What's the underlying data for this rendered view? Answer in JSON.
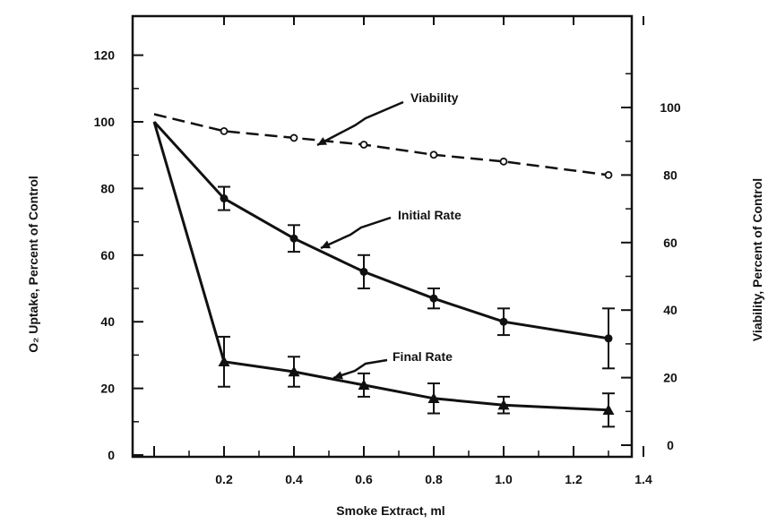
{
  "chart_data": {
    "type": "line",
    "title": "",
    "xlabel": "Smoke Extract, ml",
    "ylabel": "O₂ Uptake, Percent of Control",
    "y2label": "Viability, Percent of Control",
    "xlim": [
      0,
      1.4
    ],
    "ylim": [
      0,
      130
    ],
    "y2lim": [
      0,
      130
    ],
    "xticks": [
      0.2,
      0.4,
      0.6,
      0.8,
      1.0,
      1.2,
      1.4
    ],
    "xtick_labels": [
      "0.2",
      "0.4",
      "0.6",
      "0.8",
      "1.0",
      "1.2",
      "1.4"
    ],
    "yticks": [
      0,
      20,
      40,
      60,
      80,
      100,
      120
    ],
    "ytick_labels": [
      "0",
      "20",
      "40",
      "60",
      "80",
      "100",
      "120"
    ],
    "y2ticks": [
      0,
      20,
      40,
      60,
      80,
      100
    ],
    "y2tick_labels": [
      "0",
      "20",
      "40",
      "60",
      "80",
      "100"
    ],
    "grid": false,
    "series": [
      {
        "name": "Viability",
        "axis": "right",
        "style": "dashed",
        "marker": "open-circle",
        "x": [
          0,
          0.2,
          0.4,
          0.6,
          0.8,
          1.0,
          1.3
        ],
        "y": [
          98,
          93,
          91,
          89,
          86,
          84,
          80
        ]
      },
      {
        "name": "Initial Rate",
        "axis": "left",
        "style": "solid",
        "marker": "filled-circle",
        "x": [
          0,
          0.2,
          0.4,
          0.6,
          0.8,
          1.0,
          1.3
        ],
        "y": [
          100,
          77,
          65,
          55,
          47,
          40,
          35
        ],
        "error": [
          0,
          3.5,
          4,
          5,
          3,
          4,
          9
        ]
      },
      {
        "name": "Final Rate",
        "axis": "left",
        "style": "solid",
        "marker": "filled-triangle",
        "x": [
          0,
          0.2,
          0.4,
          0.6,
          0.8,
          1.0,
          1.3
        ],
        "y": [
          100,
          28,
          25,
          21,
          17,
          15,
          13.5
        ],
        "error": [
          0,
          7.5,
          4.5,
          3.5,
          4.5,
          2.5,
          5
        ]
      }
    ]
  }
}
